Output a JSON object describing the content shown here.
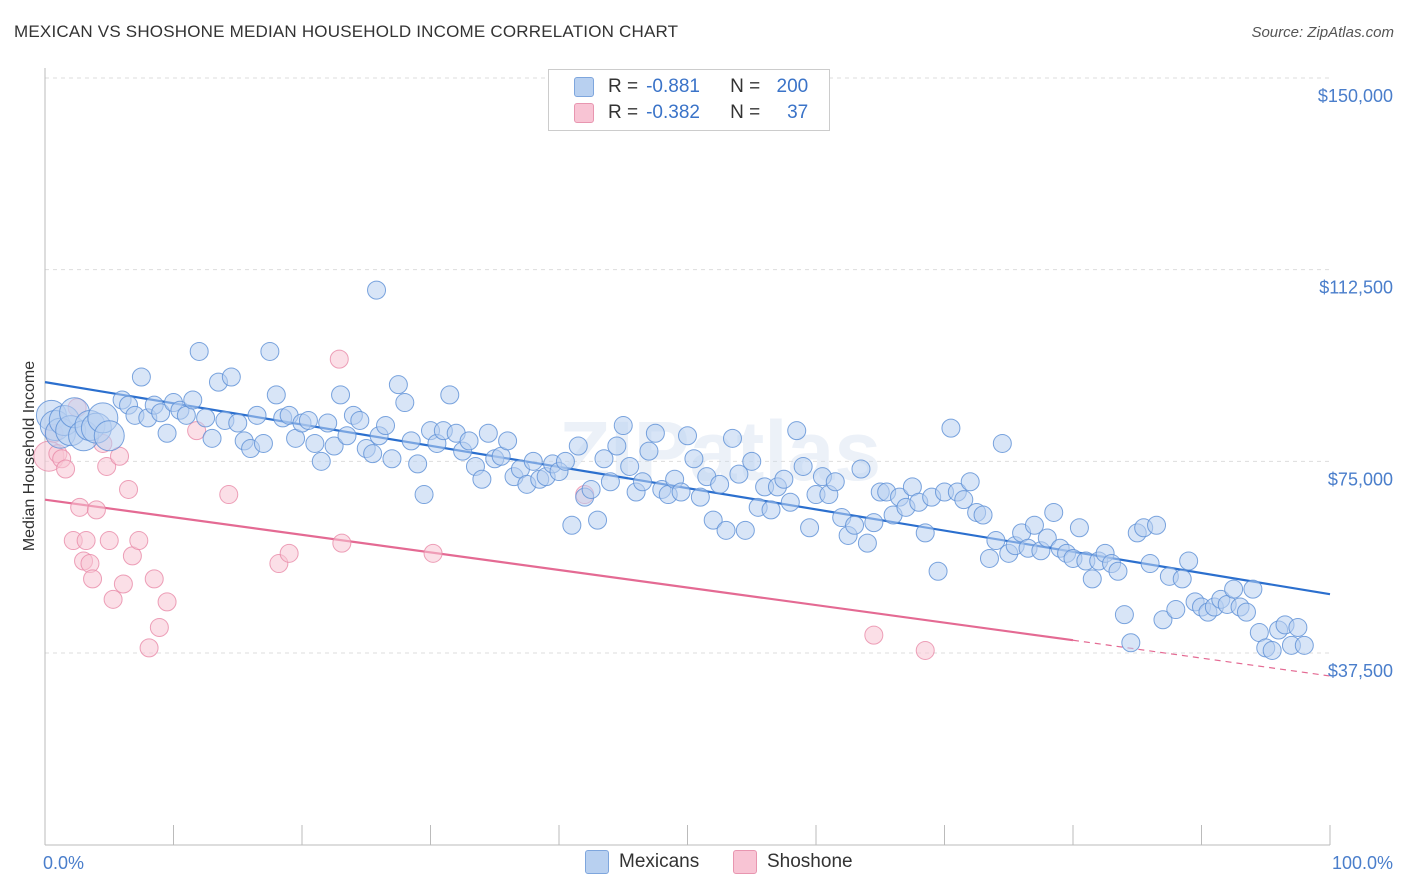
{
  "header": {
    "title": "MEXICAN VS SHOSHONE MEDIAN HOUSEHOLD INCOME CORRELATION CHART",
    "source": "Source: ZipAtlas.com"
  },
  "legend": {
    "rows": [
      {
        "r_label": "R =",
        "r_value": "-0.881",
        "n_label": "N =",
        "n_value": "200"
      },
      {
        "r_label": "R =",
        "r_value": "-0.382",
        "n_label": "N =",
        "n_value": "37"
      }
    ],
    "bottom": [
      "Mexicans",
      "Shoshone"
    ]
  },
  "colors": {
    "mexicans_fill": "#b8d0f0",
    "mexicans_stroke": "#5b8fd6",
    "mexicans_line": "#2b6fce",
    "shoshone_fill": "#f8c4d4",
    "shoshone_stroke": "#e88aa8",
    "shoshone_line": "#e46a93",
    "grid": "#dddddd",
    "tick_text": "#4a7ecb"
  },
  "chart_data": {
    "type": "scatter",
    "ylabel": "Median Household Income",
    "xlim": [
      0,
      100
    ],
    "ylim": [
      0,
      155000
    ],
    "x_tick_labels": [
      "0.0%",
      "100.0%"
    ],
    "y_ticks": [
      {
        "value": 150000,
        "label": "$150,000"
      },
      {
        "value": 112500,
        "label": "$112,500"
      },
      {
        "value": 75000,
        "label": "$75,000"
      },
      {
        "value": 37500,
        "label": "$37,500"
      }
    ],
    "grid": "horizontal dashed",
    "watermark": "ZIPatlas",
    "series": [
      {
        "name": "Mexicans",
        "trend": {
          "x0": 0,
          "y0": 90500,
          "x1": 100,
          "y1": 49000
        },
        "points": [
          [
            0.5,
            84000,
            1
          ],
          [
            0.8,
            82000,
            1
          ],
          [
            1.2,
            80500,
            1
          ],
          [
            1.5,
            83000,
            1
          ],
          [
            2,
            81000,
            1
          ],
          [
            2.3,
            84500,
            1
          ],
          [
            3,
            80000,
            1
          ],
          [
            3.5,
            82000,
            1
          ],
          [
            4,
            81500,
            1
          ],
          [
            4.5,
            83500,
            1
          ],
          [
            5,
            80000,
            1
          ],
          [
            6,
            87000,
            0
          ],
          [
            6.5,
            86000,
            0
          ],
          [
            7,
            84000,
            0
          ],
          [
            7.5,
            91500,
            0
          ],
          [
            8,
            83500,
            0
          ],
          [
            8.5,
            86000,
            0
          ],
          [
            9,
            84500,
            0
          ],
          [
            9.5,
            80500,
            0
          ],
          [
            10,
            86500,
            0
          ],
          [
            10.5,
            85000,
            0
          ],
          [
            11,
            84000,
            0
          ],
          [
            11.5,
            87000,
            0
          ],
          [
            12,
            96500,
            0
          ],
          [
            12.5,
            83500,
            0
          ],
          [
            13,
            79500,
            0
          ],
          [
            13.5,
            90500,
            0
          ],
          [
            14,
            83000,
            0
          ],
          [
            14.5,
            91500,
            0
          ],
          [
            15,
            82500,
            0
          ],
          [
            15.5,
            79000,
            0
          ],
          [
            16,
            77500,
            0
          ],
          [
            16.5,
            84000,
            0
          ],
          [
            17,
            78500,
            0
          ],
          [
            17.5,
            96500,
            0
          ],
          [
            18,
            88000,
            0
          ],
          [
            18.5,
            83500,
            0
          ],
          [
            19,
            84000,
            0
          ],
          [
            19.5,
            79500,
            0
          ],
          [
            20,
            82500,
            0
          ],
          [
            20.5,
            83000,
            0
          ],
          [
            21,
            78500,
            0
          ],
          [
            21.5,
            75000,
            0
          ],
          [
            22,
            82500,
            0
          ],
          [
            22.5,
            78000,
            0
          ],
          [
            23,
            88000,
            0
          ],
          [
            23.5,
            80000,
            0
          ],
          [
            24,
            84000,
            0
          ],
          [
            24.5,
            83000,
            0
          ],
          [
            25,
            77500,
            0
          ],
          [
            25.5,
            76500,
            0
          ],
          [
            25.8,
            108500,
            0
          ],
          [
            26,
            80000,
            0
          ],
          [
            26.5,
            82000,
            0
          ],
          [
            27,
            75500,
            0
          ],
          [
            27.5,
            90000,
            0
          ],
          [
            28,
            86500,
            0
          ],
          [
            28.5,
            79000,
            0
          ],
          [
            29,
            74500,
            0
          ],
          [
            29.5,
            68500,
            0
          ],
          [
            30,
            81000,
            0
          ],
          [
            30.5,
            78500,
            0
          ],
          [
            31,
            81000,
            0
          ],
          [
            31.5,
            88000,
            0
          ],
          [
            32,
            80500,
            0
          ],
          [
            32.5,
            77000,
            0
          ],
          [
            33,
            79000,
            0
          ],
          [
            33.5,
            74000,
            0
          ],
          [
            34,
            71500,
            0
          ],
          [
            34.5,
            80500,
            0
          ],
          [
            35,
            75500,
            0
          ],
          [
            35.5,
            76000,
            0
          ],
          [
            36,
            79000,
            0
          ],
          [
            36.5,
            72000,
            0
          ],
          [
            37,
            73500,
            0
          ],
          [
            37.5,
            70500,
            0
          ],
          [
            38,
            75000,
            0
          ],
          [
            38.5,
            71500,
            0
          ],
          [
            39,
            72000,
            0
          ],
          [
            39.5,
            74500,
            0
          ],
          [
            40,
            73000,
            0
          ],
          [
            40.5,
            75000,
            0
          ],
          [
            41,
            62500,
            0
          ],
          [
            41.5,
            78000,
            0
          ],
          [
            42,
            68000,
            0
          ],
          [
            42.5,
            69500,
            0
          ],
          [
            43,
            63500,
            0
          ],
          [
            43.5,
            75500,
            0
          ],
          [
            44,
            71000,
            0
          ],
          [
            44.5,
            78000,
            0
          ],
          [
            45,
            82000,
            0
          ],
          [
            45.5,
            74000,
            0
          ],
          [
            46,
            69000,
            0
          ],
          [
            46.5,
            71000,
            0
          ],
          [
            47,
            77000,
            0
          ],
          [
            47.5,
            80500,
            0
          ],
          [
            48,
            69500,
            0
          ],
          [
            48.5,
            68500,
            0
          ],
          [
            49,
            71500,
            0
          ],
          [
            49.5,
            69000,
            0
          ],
          [
            50,
            80000,
            0
          ],
          [
            50.5,
            75500,
            0
          ],
          [
            51,
            68000,
            0
          ],
          [
            51.5,
            72000,
            0
          ],
          [
            52,
            63500,
            0
          ],
          [
            52.5,
            70500,
            0
          ],
          [
            53,
            61500,
            0
          ],
          [
            53.5,
            79500,
            0
          ],
          [
            54,
            72500,
            0
          ],
          [
            54.5,
            61500,
            0
          ],
          [
            55,
            75000,
            0
          ],
          [
            55.5,
            66000,
            0
          ],
          [
            56,
            70000,
            0
          ],
          [
            56.5,
            65500,
            0
          ],
          [
            57,
            70000,
            0
          ],
          [
            57.5,
            71500,
            0
          ],
          [
            58,
            67000,
            0
          ],
          [
            58.5,
            81000,
            0
          ],
          [
            59,
            74000,
            0
          ],
          [
            59.5,
            62000,
            0
          ],
          [
            60,
            68500,
            0
          ],
          [
            60.5,
            72000,
            0
          ],
          [
            61,
            68500,
            0
          ],
          [
            61.5,
            71000,
            0
          ],
          [
            62,
            64000,
            0
          ],
          [
            62.5,
            60500,
            0
          ],
          [
            63,
            62500,
            0
          ],
          [
            63.5,
            73500,
            0
          ],
          [
            64,
            59000,
            0
          ],
          [
            64.5,
            63000,
            0
          ],
          [
            65,
            69000,
            0
          ],
          [
            65.5,
            69000,
            0
          ],
          [
            66,
            64500,
            0
          ],
          [
            66.5,
            68000,
            0
          ],
          [
            67,
            66000,
            0
          ],
          [
            67.5,
            70000,
            0
          ],
          [
            68,
            67000,
            0
          ],
          [
            68.5,
            61000,
            0
          ],
          [
            69,
            68000,
            0
          ],
          [
            69.5,
            53500,
            0
          ],
          [
            70,
            69000,
            0
          ],
          [
            70.5,
            81500,
            0
          ],
          [
            71,
            69000,
            0
          ],
          [
            71.5,
            67500,
            0
          ],
          [
            72,
            71000,
            0
          ],
          [
            72.5,
            65000,
            0
          ],
          [
            73,
            64500,
            0
          ],
          [
            73.5,
            56000,
            0
          ],
          [
            74,
            59500,
            0
          ],
          [
            74.5,
            78500,
            0
          ],
          [
            75,
            57000,
            0
          ],
          [
            75.5,
            58500,
            0
          ],
          [
            76,
            61000,
            0
          ],
          [
            76.5,
            58000,
            0
          ],
          [
            77,
            62500,
            0
          ],
          [
            77.5,
            57500,
            0
          ],
          [
            78,
            60000,
            0
          ],
          [
            78.5,
            65000,
            0
          ],
          [
            79,
            58000,
            0
          ],
          [
            79.5,
            57000,
            0
          ],
          [
            80,
            56000,
            0
          ],
          [
            80.5,
            62000,
            0
          ],
          [
            81,
            55500,
            0
          ],
          [
            81.5,
            52000,
            0
          ],
          [
            82,
            55500,
            0
          ],
          [
            82.5,
            57000,
            0
          ],
          [
            83,
            55000,
            0
          ],
          [
            83.5,
            53500,
            0
          ],
          [
            84,
            45000,
            0
          ],
          [
            84.5,
            39500,
            0
          ],
          [
            85,
            61000,
            0
          ],
          [
            85.5,
            62000,
            0
          ],
          [
            86,
            55000,
            0
          ],
          [
            86.5,
            62500,
            0
          ],
          [
            87,
            44000,
            0
          ],
          [
            87.5,
            52500,
            0
          ],
          [
            88,
            46000,
            0
          ],
          [
            88.5,
            52000,
            0
          ],
          [
            89,
            55500,
            0
          ],
          [
            89.5,
            47500,
            0
          ],
          [
            90,
            46500,
            0
          ],
          [
            90.5,
            45500,
            0
          ],
          [
            91,
            46500,
            0
          ],
          [
            91.5,
            48000,
            0
          ],
          [
            92,
            47000,
            0
          ],
          [
            92.5,
            50000,
            0
          ],
          [
            93,
            46500,
            0
          ],
          [
            93.5,
            45500,
            0
          ],
          [
            94,
            50000,
            0
          ],
          [
            94.5,
            41500,
            0
          ],
          [
            95,
            38500,
            0
          ],
          [
            95.5,
            38000,
            0
          ],
          [
            96,
            42000,
            0
          ],
          [
            96.5,
            43000,
            0
          ],
          [
            97,
            39000,
            0
          ],
          [
            97.5,
            42500,
            0
          ],
          [
            98,
            39000,
            0
          ]
        ]
      },
      {
        "name": "Shoshone",
        "trend": {
          "x0": 0,
          "y0": 67500,
          "x1": 80,
          "y1": 40000,
          "x_dash_end": 100,
          "y_dash_end": 33000
        },
        "points": [
          [
            0.3,
            76000,
            1
          ],
          [
            0.7,
            80500,
            0
          ],
          [
            1,
            76500,
            0
          ],
          [
            1.3,
            75500,
            0
          ],
          [
            1.6,
            73500,
            0
          ],
          [
            2.2,
            59500,
            0
          ],
          [
            2.5,
            85500,
            0
          ],
          [
            2.7,
            66000,
            0
          ],
          [
            3,
            55500,
            0
          ],
          [
            3.2,
            59500,
            0
          ],
          [
            3.5,
            55000,
            0
          ],
          [
            3.7,
            52000,
            0
          ],
          [
            4,
            65500,
            0
          ],
          [
            4.5,
            78500,
            0
          ],
          [
            4.8,
            74000,
            0
          ],
          [
            5,
            59500,
            0
          ],
          [
            5.3,
            48000,
            0
          ],
          [
            5.8,
            76000,
            0
          ],
          [
            6.1,
            51000,
            0
          ],
          [
            6.5,
            69500,
            0
          ],
          [
            6.8,
            56500,
            0
          ],
          [
            7.3,
            59500,
            0
          ],
          [
            8.1,
            38500,
            0
          ],
          [
            8.5,
            52000,
            0
          ],
          [
            8.9,
            42500,
            0
          ],
          [
            9.5,
            47500,
            0
          ],
          [
            11.8,
            81000,
            0
          ],
          [
            14.3,
            68500,
            0
          ],
          [
            18.2,
            55000,
            0
          ],
          [
            19,
            57000,
            0
          ],
          [
            22.9,
            95000,
            0
          ],
          [
            23.1,
            59000,
            0
          ],
          [
            30.2,
            57000,
            0
          ],
          [
            42,
            68500,
            0
          ],
          [
            64.5,
            41000,
            0
          ],
          [
            68.5,
            38000,
            0
          ]
        ]
      }
    ]
  }
}
